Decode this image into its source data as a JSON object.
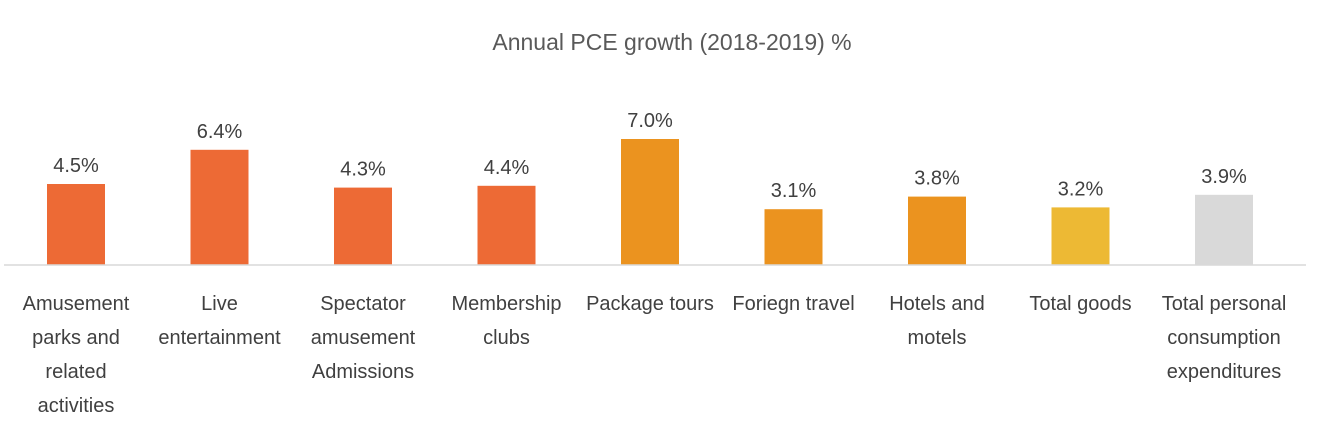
{
  "chart_data": {
    "type": "bar",
    "title": "Annual PCE growth (2018-2019) %",
    "xlabel": "",
    "ylabel": "",
    "ylim": [
      0,
      8.0
    ],
    "grid": false,
    "legend": "none",
    "value_suffix": "%",
    "categories": [
      "Amusement parks and related activities",
      "Live entertainment",
      "Spectator amusement Admissions",
      "Membership clubs",
      "Package tours",
      "Foriegn travel",
      "Hotels and motels",
      "Total goods",
      "Total personal consumption expenditures"
    ],
    "category_lines": [
      [
        "Amusement",
        "parks  and",
        "related",
        "activities"
      ],
      [
        "Live",
        "entertainment"
      ],
      [
        "Spectator",
        "amusement",
        "Admissions"
      ],
      [
        "Membership",
        "clubs"
      ],
      [
        "Package tours"
      ],
      [
        "Foriegn travel"
      ],
      [
        "Hotels and",
        "motels"
      ],
      [
        "Total goods"
      ],
      [
        "Total personal",
        "consumption",
        "expenditures"
      ]
    ],
    "values": [
      4.5,
      6.4,
      4.3,
      4.4,
      7.0,
      3.1,
      3.8,
      3.2,
      3.9
    ],
    "data_labels": [
      "4.5%",
      "6.4%",
      "4.3%",
      "4.4%",
      "7.0%",
      "3.1%",
      "3.8%",
      "3.2%",
      "3.9%"
    ],
    "bar_colors": [
      "#ED6A35",
      "#ED6A35",
      "#ED6A35",
      "#ED6A35",
      "#EB931F",
      "#EB931F",
      "#EB931F",
      "#EDB934",
      "#D9D9D9"
    ]
  },
  "colors": {
    "axis_line": "#D9D9D9",
    "title_text": "#595959",
    "label_text": "#404040"
  }
}
